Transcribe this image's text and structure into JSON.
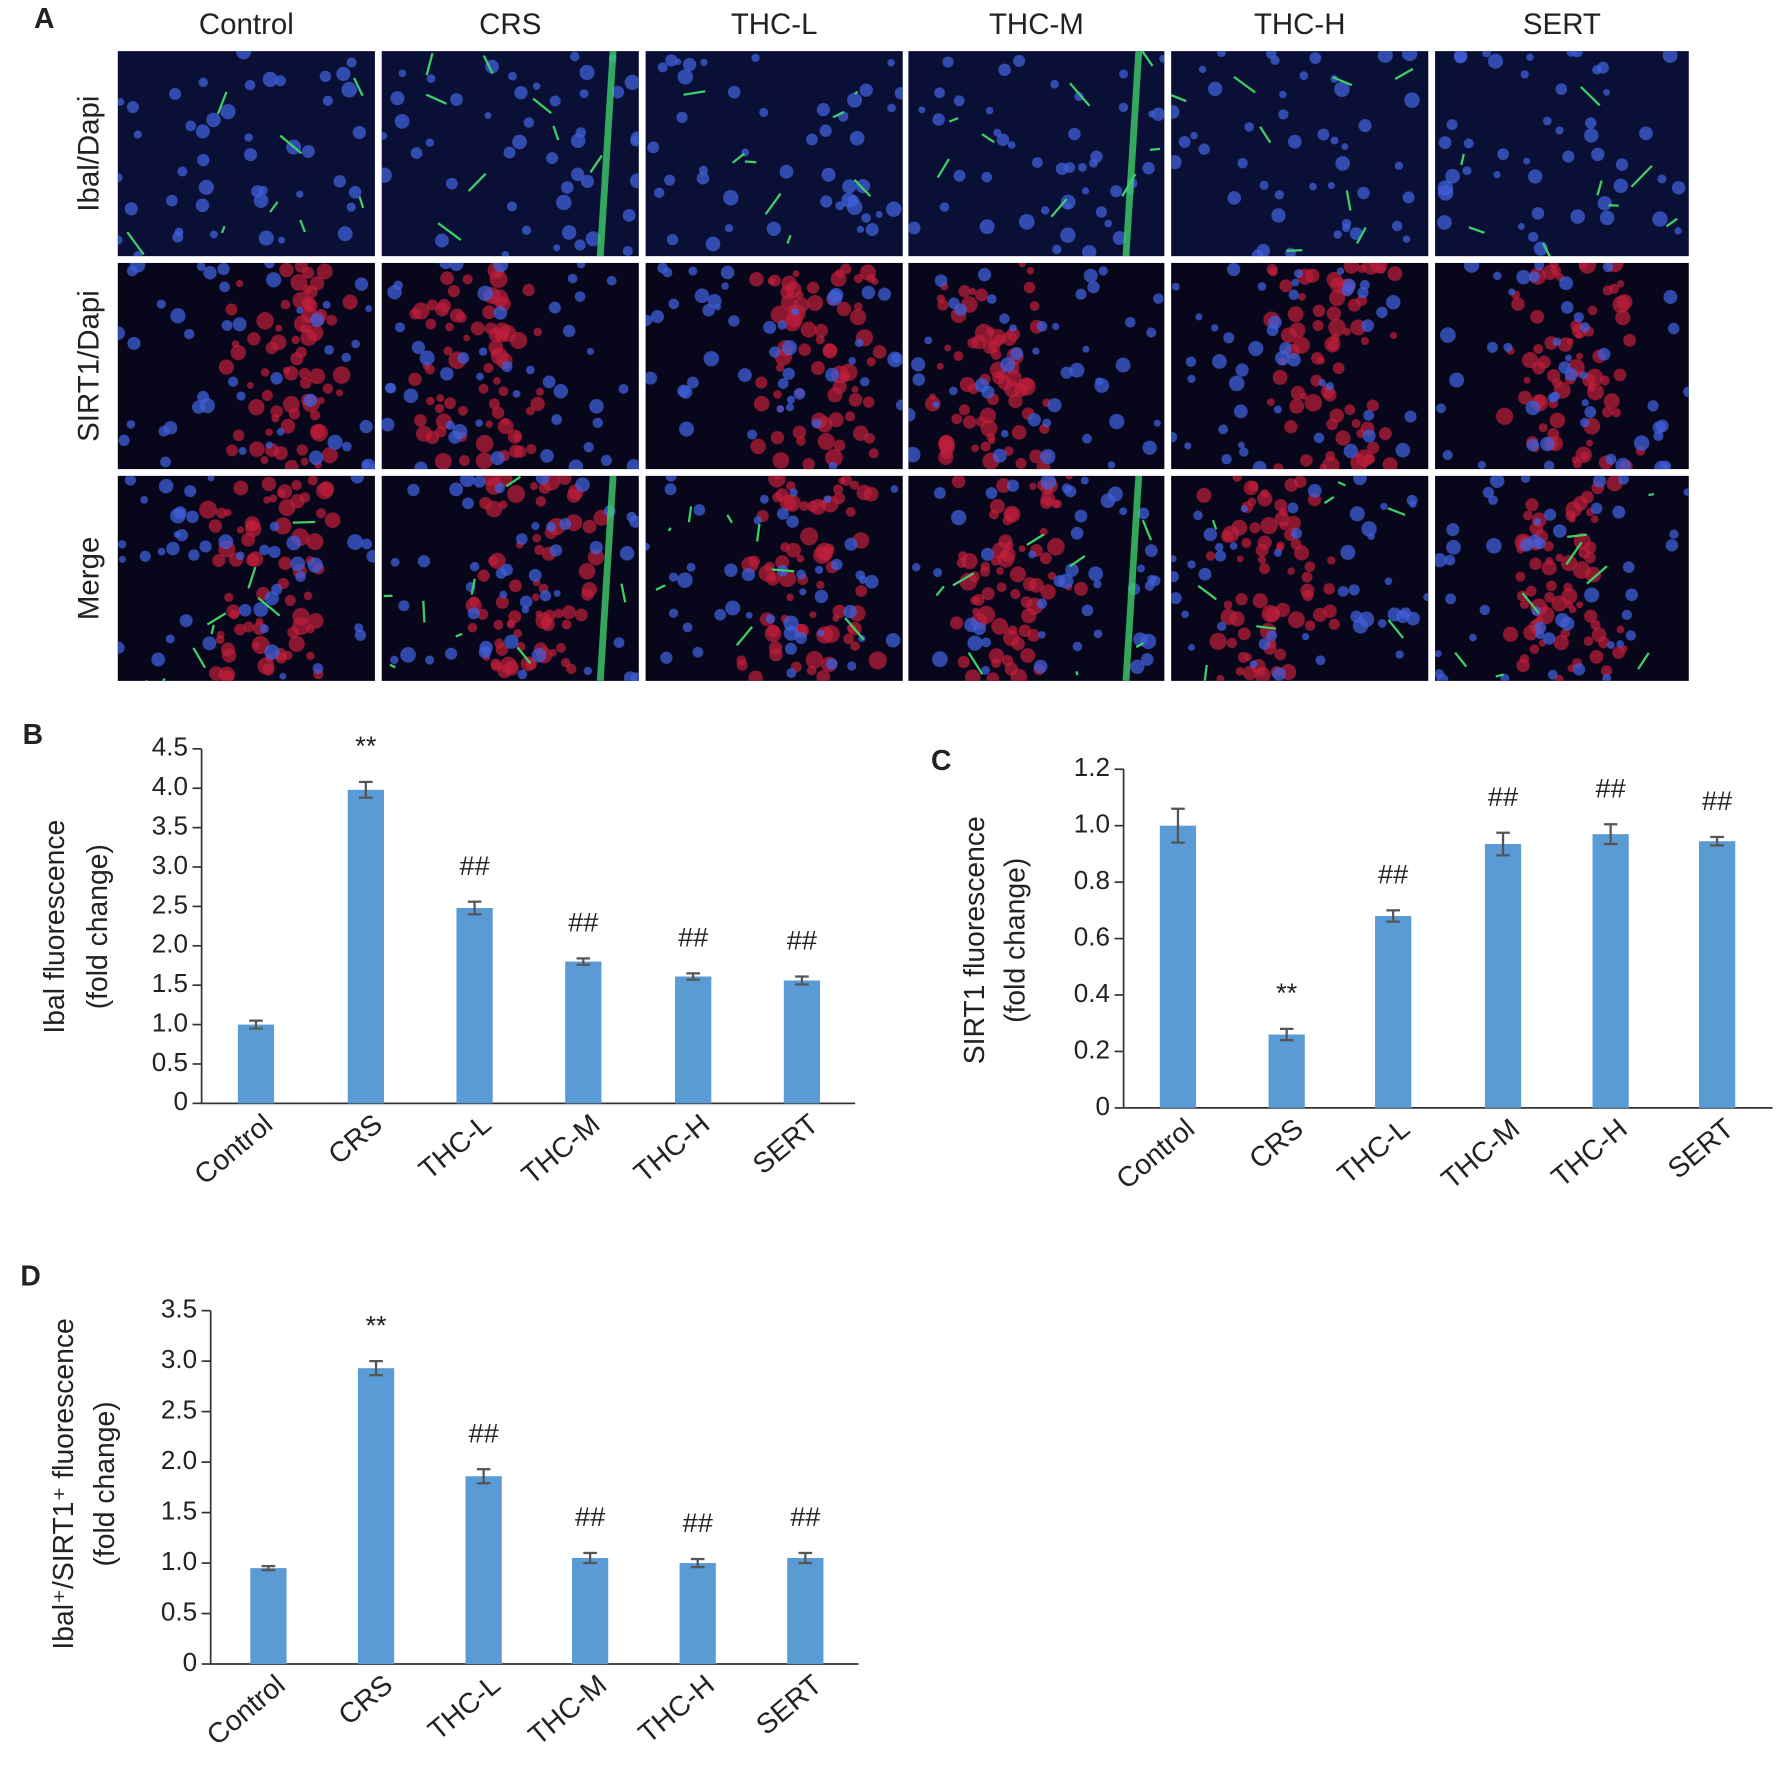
{
  "panel_a": {
    "label": "A",
    "columns": [
      "Control",
      "CRS",
      "THC-L",
      "THC-M",
      "THC-H",
      "SERT"
    ],
    "rows": [
      "Ibal/Dapi",
      "SIRT1/Dapi",
      "Merge"
    ]
  },
  "chart_data": [
    {
      "type": "bar",
      "label": "B",
      "ylabel": [
        "Ibal fluorescence",
        "(fold change)"
      ],
      "categories": [
        "Control",
        "CRS",
        "THC-L",
        "THC-M",
        "THC-H",
        "SERT"
      ],
      "values": [
        1.0,
        3.98,
        2.48,
        1.8,
        1.61,
        1.56
      ],
      "errors": [
        0.05,
        0.1,
        0.08,
        0.04,
        0.04,
        0.05
      ],
      "value_annotations": [
        null,
        "**",
        "##",
        "##",
        "##",
        "##"
      ],
      "color": "#5b9bd5",
      "ylim": [
        0,
        4.5
      ],
      "yticks": [
        0,
        0.5,
        {
          "value": 1,
          "label": "1.0"
        },
        1.5,
        {
          "value": 2,
          "label": "2.0"
        },
        2.5,
        {
          "value": 3,
          "label": "3.0"
        },
        3.5,
        {
          "value": 4,
          "label": "4.0"
        },
        4.5
      ]
    },
    {
      "type": "bar",
      "label": "C",
      "ylabel": [
        "SIRT1 fluorescence",
        "(fold change)"
      ],
      "categories": [
        "Control",
        "CRS",
        "THC-L",
        "THC-M",
        "THC-H",
        "SERT"
      ],
      "values": [
        1.0,
        0.26,
        0.68,
        0.935,
        0.97,
        0.945
      ],
      "errors": [
        0.06,
        0.02,
        0.02,
        0.04,
        0.035,
        0.015
      ],
      "value_annotations": [
        null,
        "**",
        "##",
        "##",
        "##",
        "##"
      ],
      "color": "#5b9bd5",
      "ylim": [
        0,
        1.2
      ],
      "yticks": [
        0,
        0.2,
        0.4,
        0.6,
        0.8,
        {
          "value": 1,
          "label": "1.0"
        },
        1.2
      ]
    },
    {
      "type": "bar",
      "label": "D",
      "ylabel": [
        "Ibal⁺/SIRT1⁺ fluorescence",
        "(fold change)"
      ],
      "categories": [
        "Control",
        "CRS",
        "THC-L",
        "THC-M",
        "THC-H",
        "SERT"
      ],
      "values": [
        0.95,
        2.93,
        1.86,
        1.05,
        1.0,
        1.05
      ],
      "errors": [
        0.02,
        0.07,
        0.07,
        0.05,
        0.04,
        0.05
      ],
      "value_annotations": [
        null,
        "**",
        "##",
        "##",
        "##",
        "##"
      ],
      "color": "#5b9bd5",
      "ylim": [
        0,
        3.5
      ],
      "yticks": [
        0,
        0.5,
        {
          "value": 1,
          "label": "1.0"
        },
        1.5,
        {
          "value": 2,
          "label": "2.0"
        },
        2.5,
        {
          "value": 3,
          "label": "3.0"
        },
        3.5
      ]
    }
  ]
}
